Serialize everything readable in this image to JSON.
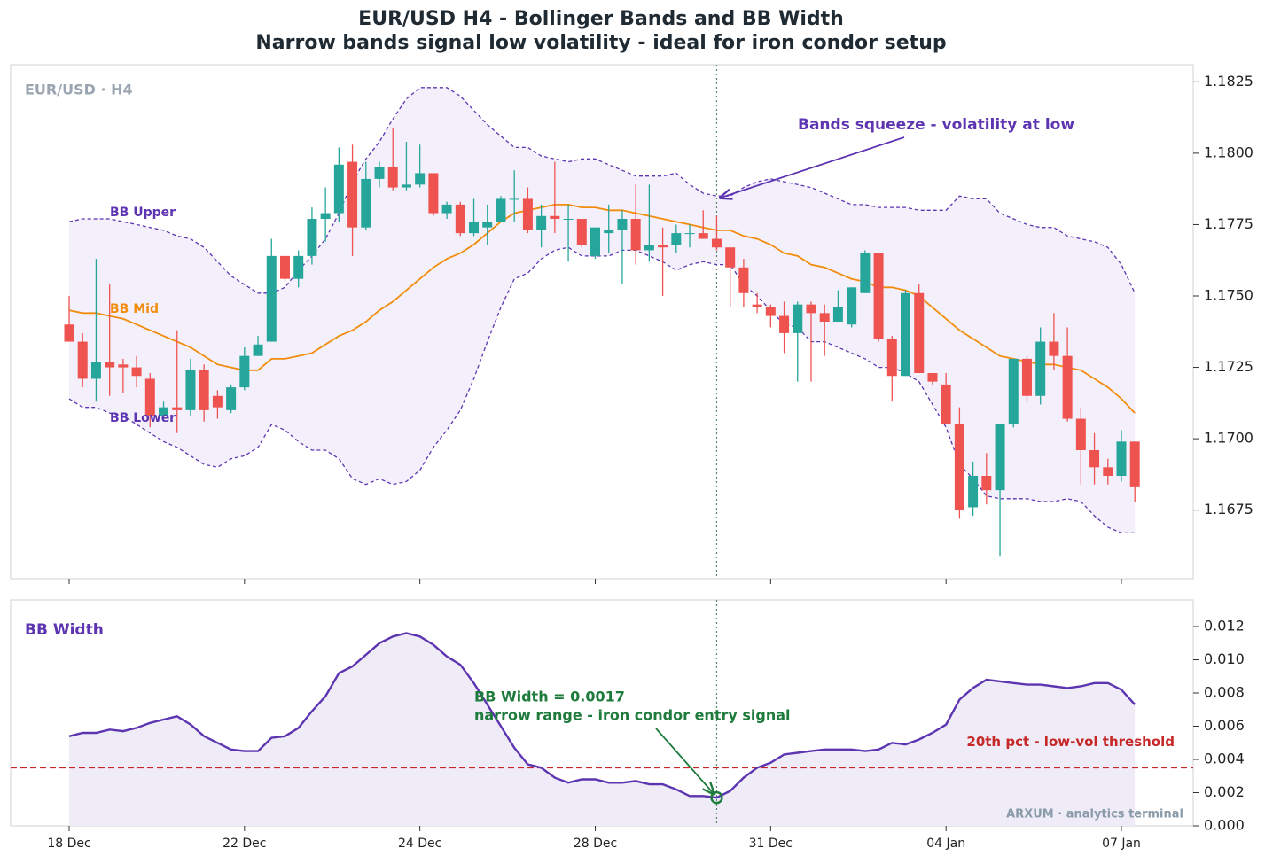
{
  "title": "EUR/USD H4 - Bollinger Bands and BB Width",
  "subtitle": "Narrow bands signal low volatility - ideal for iron condor setup",
  "chart_data": [
    {
      "type": "candlestick",
      "panel_label": "EUR/USD · H4",
      "up_color": "#26a69a",
      "down_color": "#ef5350",
      "band_fill": "#f3f0fb",
      "open": [
        1.174,
        1.1734,
        1.1721,
        1.1727,
        1.1726,
        1.1725,
        1.1721,
        1.1708,
        1.1711,
        1.171,
        1.1724,
        1.1715,
        1.171,
        1.1718,
        1.1729,
        1.1734,
        1.1764,
        1.1756,
        1.1764,
        1.1777,
        1.1779,
        1.1797,
        1.1774,
        1.1791,
        1.1795,
        1.1788,
        1.1789,
        1.1793,
        1.1779,
        1.1782,
        1.1772,
        1.1774,
        1.1776,
        1.1784,
        1.1784,
        1.1773,
        1.1778,
        1.1777,
        1.1777,
        1.1764,
        1.1772,
        1.1773,
        1.1777,
        1.1766,
        1.1768,
        1.1768,
        1.1772,
        1.1772,
        1.177,
        1.1767,
        1.176,
        1.1747,
        1.1746,
        1.1743,
        1.1737,
        1.1747,
        1.1744,
        1.1741,
        1.174,
        1.1751,
        1.1765,
        1.1735,
        1.1722,
        1.1751,
        1.1723,
        1.1719,
        1.1705,
        1.1676,
        1.1687,
        1.1682,
        1.1705,
        1.1728,
        1.1715,
        1.1734,
        1.1729,
        1.1707,
        1.1696,
        1.169,
        1.1687,
        1.1699
      ],
      "high": [
        1.175,
        1.1737,
        1.1763,
        1.1754,
        1.1728,
        1.1729,
        1.1723,
        1.1713,
        1.1738,
        1.1728,
        1.1726,
        1.1717,
        1.1719,
        1.1732,
        1.1736,
        1.177,
        1.1764,
        1.1766,
        1.1781,
        1.1788,
        1.1802,
        1.1803,
        1.1797,
        1.1797,
        1.1809,
        1.1804,
        1.1803,
        1.1793,
        1.1783,
        1.1783,
        1.1784,
        1.1782,
        1.1785,
        1.1794,
        1.1788,
        1.1782,
        1.1797,
        1.1782,
        1.1777,
        1.1774,
        1.1782,
        1.178,
        1.1789,
        1.1789,
        1.1774,
        1.1775,
        1.1775,
        1.178,
        1.1778,
        1.1767,
        1.1763,
        1.1751,
        1.1747,
        1.1748,
        1.1748,
        1.1748,
        1.1747,
        1.1752,
        1.1753,
        1.1766,
        1.1765,
        1.1736,
        1.1752,
        1.1754,
        1.1723,
        1.1723,
        1.1711,
        1.1692,
        1.1695,
        1.1705,
        1.1728,
        1.1729,
        1.1739,
        1.1744,
        1.1739,
        1.1711,
        1.1702,
        1.1693,
        1.1703,
        1.1699
      ],
      "low": [
        1.1734,
        1.1718,
        1.1713,
        1.1715,
        1.1716,
        1.1718,
        1.1704,
        1.1706,
        1.1702,
        1.1708,
        1.1706,
        1.1707,
        1.1709,
        1.1717,
        1.1729,
        1.1734,
        1.1755,
        1.1753,
        1.1761,
        1.1769,
        1.1776,
        1.1764,
        1.1773,
        1.1788,
        1.1787,
        1.1787,
        1.1788,
        1.1778,
        1.1777,
        1.1771,
        1.1771,
        1.1768,
        1.1776,
        1.1776,
        1.1772,
        1.1767,
        1.1772,
        1.1762,
        1.1767,
        1.1763,
        1.1765,
        1.1754,
        1.1761,
        1.1762,
        1.175,
        1.1765,
        1.1767,
        1.177,
        1.1766,
        1.1746,
        1.1746,
        1.1744,
        1.1739,
        1.173,
        1.172,
        1.172,
        1.1729,
        1.1741,
        1.1739,
        1.1751,
        1.1734,
        1.1713,
        1.1722,
        1.1723,
        1.1719,
        1.1705,
        1.1672,
        1.1673,
        1.1677,
        1.1659,
        1.1704,
        1.1713,
        1.1712,
        1.1724,
        1.1706,
        1.1684,
        1.1684,
        1.1684,
        1.1685,
        1.1678
      ],
      "close": [
        1.1734,
        1.1721,
        1.1727,
        1.1725,
        1.1725,
        1.1722,
        1.1708,
        1.1711,
        1.171,
        1.1724,
        1.171,
        1.1711,
        1.1718,
        1.1729,
        1.1733,
        1.1764,
        1.1756,
        1.1764,
        1.1777,
        1.1779,
        1.1796,
        1.1774,
        1.1791,
        1.1795,
        1.1788,
        1.1789,
        1.1793,
        1.1779,
        1.1782,
        1.1772,
        1.1776,
        1.1776,
        1.1784,
        1.1784,
        1.1773,
        1.1778,
        1.1777,
        1.1777,
        1.1768,
        1.1774,
        1.1773,
        1.1777,
        1.1766,
        1.1768,
        1.1767,
        1.1772,
        1.1772,
        1.177,
        1.1767,
        1.176,
        1.1751,
        1.1746,
        1.1743,
        1.1737,
        1.1747,
        1.1744,
        1.1741,
        1.1746,
        1.1753,
        1.1765,
        1.1735,
        1.1722,
        1.1751,
        1.1723,
        1.172,
        1.1705,
        1.1675,
        1.1687,
        1.1682,
        1.1705,
        1.1728,
        1.1715,
        1.1734,
        1.1729,
        1.1707,
        1.1696,
        1.169,
        1.1687,
        1.1699,
        1.1683
      ],
      "series": [
        {
          "name": "BB Upper",
          "color": "#5e35b1",
          "style": "dashed",
          "values": [
            1.1776,
            1.1777,
            1.1777,
            1.1777,
            1.1776,
            1.1775,
            1.1774,
            1.1773,
            1.1771,
            1.177,
            1.1767,
            1.1762,
            1.1757,
            1.1754,
            1.1751,
            1.1751,
            1.1753,
            1.1759,
            1.1764,
            1.177,
            1.1779,
            1.179,
            1.1798,
            1.1804,
            1.1812,
            1.1819,
            1.1823,
            1.1823,
            1.1823,
            1.182,
            1.1815,
            1.181,
            1.1806,
            1.1802,
            1.1802,
            1.1799,
            1.1798,
            1.1797,
            1.1798,
            1.1798,
            1.1796,
            1.1794,
            1.1792,
            1.1792,
            1.1792,
            1.1793,
            1.1789,
            1.1786,
            1.1785,
            1.1785,
            1.1788,
            1.179,
            1.1791,
            1.179,
            1.1789,
            1.1788,
            1.1786,
            1.1784,
            1.1782,
            1.1782,
            1.1781,
            1.1781,
            1.1781,
            1.178,
            1.178,
            1.178,
            1.1785,
            1.1784,
            1.1784,
            1.1779,
            1.1777,
            1.1775,
            1.1774,
            1.1774,
            1.1771,
            1.177,
            1.1769,
            1.1767,
            1.1761,
            1.1751
          ]
        },
        {
          "name": "BB Mid",
          "color": "#f28c0c",
          "style": "solid",
          "values": [
            1.1745,
            1.1744,
            1.1744,
            1.1743,
            1.1742,
            1.174,
            1.1738,
            1.1736,
            1.1734,
            1.1732,
            1.1729,
            1.1726,
            1.1725,
            1.1724,
            1.1724,
            1.1728,
            1.1728,
            1.1729,
            1.173,
            1.1733,
            1.1736,
            1.1738,
            1.1741,
            1.1745,
            1.1748,
            1.1752,
            1.1756,
            1.176,
            1.1763,
            1.1765,
            1.1768,
            1.1772,
            1.1776,
            1.1779,
            1.178,
            1.1781,
            1.1782,
            1.1782,
            1.1781,
            1.1781,
            1.178,
            1.178,
            1.1779,
            1.1778,
            1.1777,
            1.1776,
            1.1775,
            1.1774,
            1.1773,
            1.1773,
            1.1771,
            1.177,
            1.1768,
            1.1765,
            1.1764,
            1.1761,
            1.176,
            1.1758,
            1.1756,
            1.1755,
            1.1753,
            1.1753,
            1.1752,
            1.175,
            1.1746,
            1.1742,
            1.1738,
            1.1735,
            1.1732,
            1.1729,
            1.1728,
            1.1727,
            1.1726,
            1.1726,
            1.1725,
            1.1724,
            1.1721,
            1.1718,
            1.1714,
            1.1709
          ]
        },
        {
          "name": "BB Lower",
          "color": "#5e35b1",
          "style": "dashed",
          "values": [
            1.1714,
            1.1711,
            1.1711,
            1.1709,
            1.1708,
            1.1705,
            1.1702,
            1.1699,
            1.1697,
            1.1694,
            1.1691,
            1.169,
            1.1693,
            1.1694,
            1.1697,
            1.1705,
            1.1703,
            1.1699,
            1.1696,
            1.1696,
            1.1693,
            1.1686,
            1.1684,
            1.1686,
            1.1684,
            1.1685,
            1.1689,
            1.1697,
            1.1703,
            1.171,
            1.1721,
            1.1734,
            1.1746,
            1.1756,
            1.1758,
            1.1763,
            1.1766,
            1.1767,
            1.1764,
            1.1764,
            1.1764,
            1.1766,
            1.1766,
            1.1764,
            1.1762,
            1.1759,
            1.1761,
            1.1762,
            1.1761,
            1.1761,
            1.1754,
            1.175,
            1.1745,
            1.174,
            1.1739,
            1.1734,
            1.1734,
            1.1732,
            1.173,
            1.1728,
            1.1725,
            1.1725,
            1.1723,
            1.172,
            1.1712,
            1.1704,
            1.1691,
            1.1686,
            1.168,
            1.1679,
            1.1679,
            1.1679,
            1.1678,
            1.1678,
            1.1679,
            1.1678,
            1.1673,
            1.1669,
            1.1667,
            1.1667
          ]
        }
      ],
      "annotation": "Bands squeeze - volatility at low",
      "ylim": [
        1.1651,
        1.1831
      ],
      "yticks": [
        1.1825,
        {
          "value": 1.18,
          "label": "1.1800"
        },
        1.1775,
        {
          "value": 1.175,
          "label": "1.1750"
        },
        1.1725,
        {
          "value": 1.17,
          "label": "1.1700"
        },
        1.1675
      ]
    },
    {
      "type": "line",
      "fill": "#efecf8",
      "categories": [
        "18 Dec",
        null,
        null,
        null,
        null,
        null,
        null,
        null,
        null,
        null,
        null,
        null,
        null,
        "22 Dec",
        null,
        null,
        null,
        null,
        null,
        null,
        null,
        null,
        null,
        null,
        null,
        null,
        "24 Dec",
        null,
        null,
        null,
        null,
        null,
        null,
        null,
        null,
        null,
        null,
        null,
        null,
        "28 Dec",
        null,
        null,
        null,
        null,
        null,
        null,
        null,
        null,
        null,
        null,
        null,
        null,
        "31 Dec",
        null,
        null,
        null,
        null,
        null,
        null,
        null,
        null,
        null,
        null,
        null,
        null,
        "04 Jan",
        null,
        null,
        null,
        null,
        null,
        null,
        null,
        null,
        null,
        null,
        null,
        null,
        "07 Jan",
        null
      ],
      "series": [
        {
          "name": "BB Width",
          "color": "#5e35b1",
          "values": [
            0.0054,
            0.0056,
            0.0056,
            0.0058,
            0.0057,
            0.0059,
            0.0062,
            0.0064,
            0.0066,
            0.0061,
            0.0054,
            0.005,
            0.0046,
            0.0045,
            0.0045,
            0.0053,
            0.0054,
            0.0059,
            0.0069,
            0.0078,
            0.0092,
            0.0096,
            0.0103,
            0.011,
            0.0114,
            0.0116,
            0.0114,
            0.0109,
            0.0102,
            0.0097,
            0.0086,
            0.0073,
            0.006,
            0.0047,
            0.0037,
            0.0035,
            0.0029,
            0.0026,
            0.0028,
            0.0028,
            0.0026,
            0.0026,
            0.0027,
            0.0025,
            0.0025,
            0.0022,
            0.0018,
            0.0018,
            0.0017,
            0.0021,
            0.0029,
            0.0035,
            0.0038,
            0.0043,
            0.0044,
            0.0045,
            0.0046,
            0.0046,
            0.0046,
            0.0045,
            0.0046,
            0.005,
            0.0049,
            0.0052,
            0.0056,
            0.0061,
            0.0076,
            0.0083,
            0.0088,
            0.0087,
            0.0086,
            0.0085,
            0.0085,
            0.0084,
            0.0083,
            0.0084,
            0.0086,
            0.0086,
            0.0082,
            0.0073
          ]
        }
      ],
      "threshold": {
        "value": 0.0035,
        "label": "20th pct - low-vol threshold",
        "color": "#c62828"
      },
      "annotation": [
        "BB Width = 0.0017",
        "narrow range - iron condor entry signal"
      ],
      "annotation_color": "#1e7b3c",
      "watermark": "ARXUM · analytics terminal",
      "ylim": [
        0,
        0.0136
      ],
      "yticks": [
        {
          "value": 0,
          "label": "0.000"
        },
        {
          "value": 0.002,
          "label": "0.002"
        },
        {
          "value": 0.004,
          "label": "0.004"
        },
        {
          "value": 0.006,
          "label": "0.006"
        },
        {
          "value": 0.008,
          "label": "0.008"
        },
        {
          "value": 0.01,
          "label": "0.010"
        },
        {
          "value": 0.012,
          "label": "0.012"
        }
      ]
    }
  ]
}
